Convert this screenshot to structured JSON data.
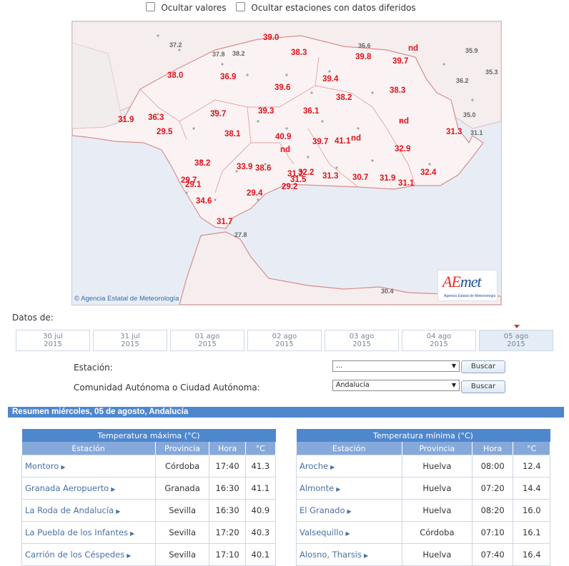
{
  "options": {
    "hide_values": "Ocultar valores",
    "hide_deferred": "Ocultar estaciones con datos diferidos"
  },
  "map": {
    "copyright": "© Agencia Estatal de Meteorología",
    "logo_text_a": "A",
    "logo_text_e": "E",
    "logo_text_rest": "met",
    "logo_sub": "Agencia Estatal de Meteorología",
    "values_red": [
      "39.0",
      "38.3",
      "39.8",
      "nd",
      "39.7",
      "38.0",
      "36.9",
      "39.4",
      "38.3",
      "39.6",
      "38.2",
      "31.9",
      "36.3",
      "39.7",
      "39.3",
      "36.1",
      "nd",
      "29.5",
      "38.1",
      "40.9",
      "31.3",
      "nd",
      "39.7",
      "41.1",
      "nd",
      "32.9",
      "38.2",
      "33.9",
      "38.6",
      "31.2",
      "32.2",
      "29.7",
      "29.1",
      "31.5",
      "31.3",
      "30.7",
      "31.9",
      "32.4",
      "31.1",
      "29.2",
      "29.4",
      "34.6",
      "31.7"
    ],
    "values_grey": [
      "37.2",
      "37.8",
      "38.2",
      "36.6",
      "35.9",
      "35.3",
      "36.2",
      "35.0",
      "31.1",
      "27.8",
      "30.4"
    ]
  },
  "datos_label": "Datos de:",
  "dates": [
    {
      "day": "30 jul",
      "year": "2015"
    },
    {
      "day": "31 jul",
      "year": "2015"
    },
    {
      "day": "01 ago",
      "year": "2015"
    },
    {
      "day": "02 ago",
      "year": "2015"
    },
    {
      "day": "03 ago",
      "year": "2015"
    },
    {
      "day": "04 ago",
      "year": "2015"
    },
    {
      "day": "05 ago",
      "year": "2015"
    }
  ],
  "form": {
    "station_label": "Estación:",
    "station_value": "...",
    "community_label": "Comunidad Autónoma o Ciudad Autónoma:",
    "community_value": "Andalucía",
    "search_label": "Buscar"
  },
  "summary_title": "Resumen miércoles, 05 de agosto, Andalucía",
  "tmax": {
    "caption": "Temperatura máxima (°C)",
    "headers": [
      "Estación",
      "Provincia",
      "Hora",
      "°C"
    ],
    "rows": [
      [
        "Montoro",
        "Córdoba",
        "17:40",
        "41.3"
      ],
      [
        "Granada Aeropuerto",
        "Granada",
        "16:30",
        "41.1"
      ],
      [
        "La Roda de Andalucía",
        "Sevilla",
        "16:30",
        "40.9"
      ],
      [
        "La Puebla de los Infantes",
        "Sevilla",
        "17:20",
        "40.3"
      ],
      [
        "Carrión de los Céspedes",
        "Sevilla",
        "17:10",
        "40.1"
      ]
    ]
  },
  "tmin": {
    "caption": "Temperatura mínima (°C)",
    "headers": [
      "Estación",
      "Provincia",
      "Hora",
      "°C"
    ],
    "rows": [
      [
        "Aroche",
        "Huelva",
        "08:00",
        "12.4"
      ],
      [
        "Almonte",
        "Huelva",
        "07:20",
        "14.4"
      ],
      [
        "El Granado",
        "Huelva",
        "08:20",
        "16.0"
      ],
      [
        "Valsequillo",
        "Córdoba",
        "07:10",
        "16.1"
      ],
      [
        "Alosno, Tharsis",
        "Huelva",
        "07:40",
        "16.4"
      ]
    ]
  }
}
